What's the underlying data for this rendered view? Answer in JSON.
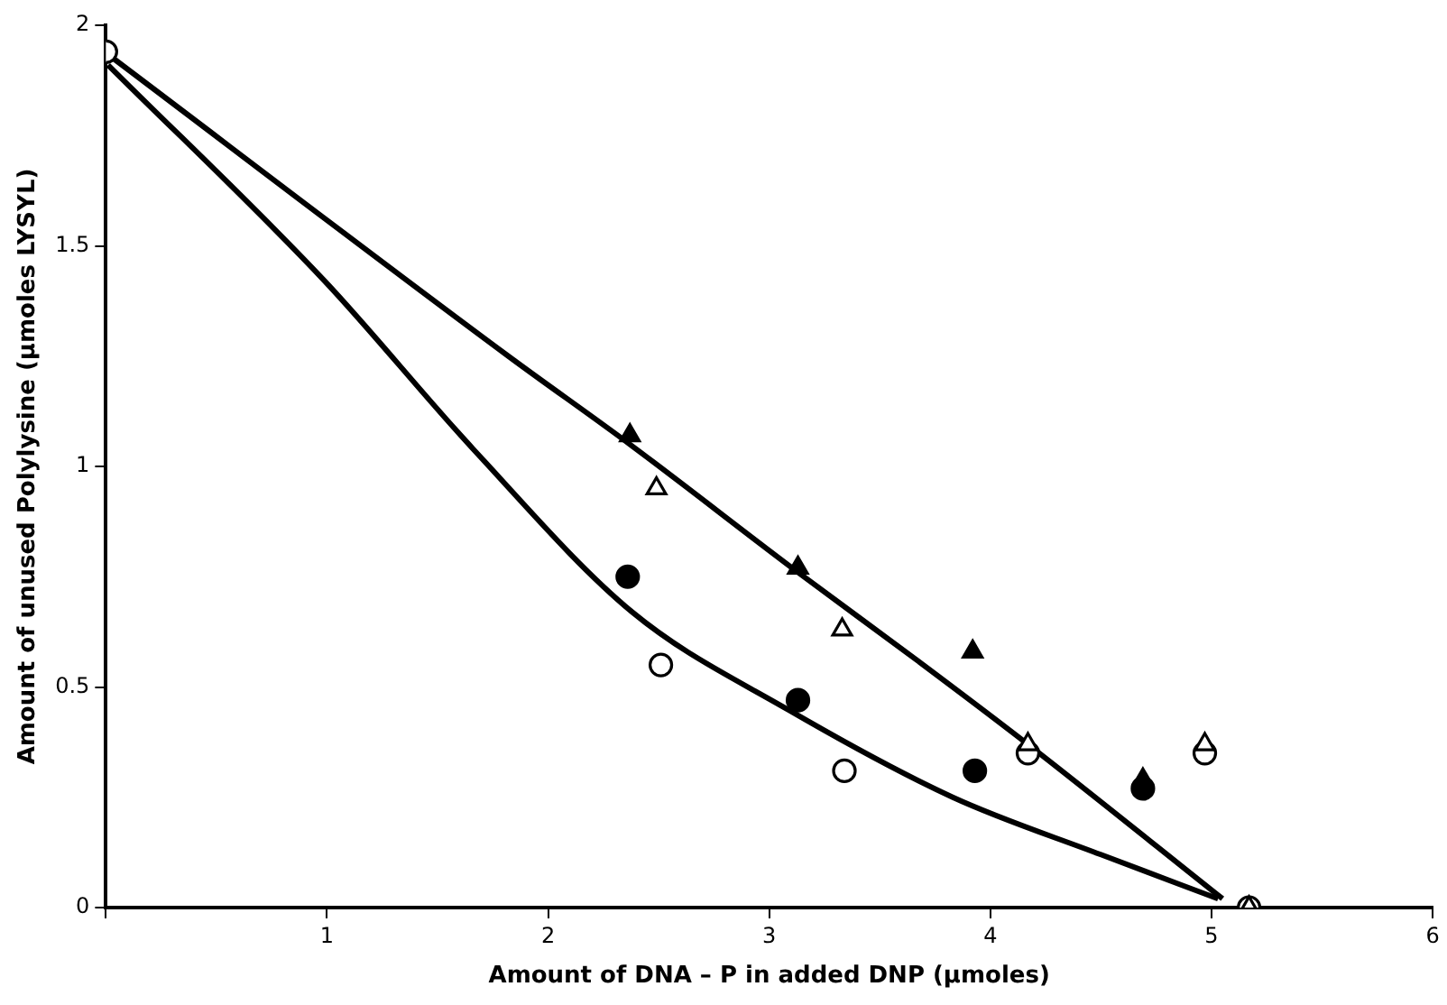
{
  "chart_data": {
    "type": "scatter",
    "xlabel": "Amount of DNA – P in added DNP (μmoles)",
    "ylabel": "Amount of unused Polylysine (μmoles LYSYL)",
    "xlim": [
      0,
      6
    ],
    "xticks": [
      {
        "value": 0,
        "label": null
      },
      1,
      2,
      3,
      4,
      5,
      6
    ],
    "ylim": [
      0,
      2
    ],
    "yticks": [
      0,
      0.5,
      1,
      1.5,
      2
    ],
    "grid": false,
    "legend": false,
    "series": [
      {
        "type": "line",
        "color": "#000000",
        "marker": "none",
        "x": [
          0.02,
          1.82,
          2.37,
          3.13,
          3.67,
          4.17,
          5.05
        ],
        "values": [
          1.93,
          1.25,
          1.05,
          0.76,
          0.56,
          0.37,
          0.02
        ]
      },
      {
        "type": "line",
        "color": "#000000",
        "marker": "none",
        "x": [
          0.01,
          0.99,
          1.66,
          2.38,
          3.08,
          3.83,
          4.5,
          5.03
        ],
        "values": [
          1.91,
          1.42,
          1.04,
          0.67,
          0.45,
          0.25,
          0.12,
          0.02
        ]
      },
      {
        "color": "#000000",
        "marker": "triangle",
        "x": [
          2.37,
          3.13,
          3.92,
          4.69
        ],
        "values": [
          1.07,
          0.77,
          0.58,
          0.29
        ]
      },
      {
        "color": "#ffffff",
        "marker": "triangle",
        "x": [
          2.49,
          3.33,
          4.17,
          4.97,
          5.17
        ],
        "values": [
          0.95,
          0.63,
          0.37,
          0.37,
          0
        ]
      },
      {
        "color": "#000000",
        "marker": "circle",
        "x": [
          2.36,
          3.13,
          3.93,
          4.69
        ],
        "values": [
          0.75,
          0.47,
          0.31,
          0.27
        ]
      },
      {
        "color": "#ffffff",
        "marker": "circle",
        "x": [
          0,
          2.51,
          3.34,
          4.17,
          4.97,
          5.17
        ],
        "values": [
          1.94,
          0.55,
          0.31,
          0.35,
          0.35,
          0
        ]
      }
    ]
  }
}
